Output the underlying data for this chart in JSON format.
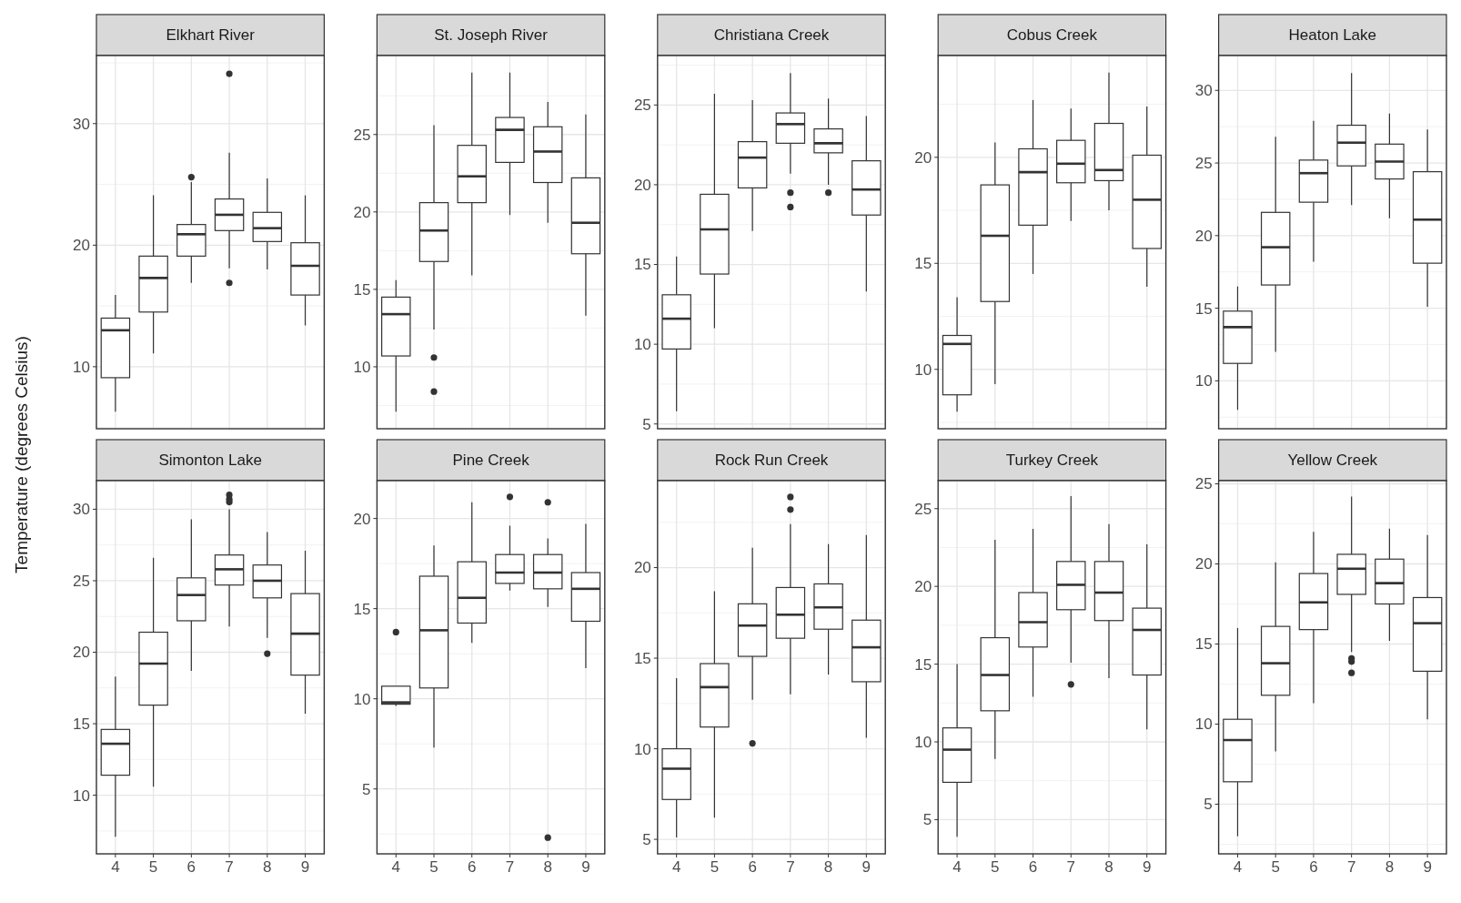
{
  "chart_data": [
    {
      "type": "box",
      "title": "Elkhart River",
      "ylabel": "Temperature (degrees Celsius)",
      "categories": [
        "4",
        "5",
        "6",
        "7",
        "8",
        "9"
      ],
      "ylim": [
        4.9,
        35.6
      ],
      "yticks": [
        10,
        20,
        30
      ],
      "grid": true,
      "tick_labels": "y",
      "boxes": [
        {
          "low": 6.3,
          "q1": 9.1,
          "median": 13.0,
          "q3": 14.0,
          "high": 15.9
        },
        {
          "low": 11.1,
          "q1": 14.5,
          "median": 17.3,
          "q3": 19.1,
          "high": 24.1
        },
        {
          "low": 16.9,
          "q1": 19.1,
          "median": 20.9,
          "q3": 21.7,
          "high": 25.2,
          "outliers": [
            25.6
          ]
        },
        {
          "low": 18.1,
          "q1": 21.2,
          "median": 22.5,
          "q3": 23.8,
          "high": 27.6,
          "outliers": [
            34.1,
            16.9
          ]
        },
        {
          "low": 18.0,
          "q1": 20.3,
          "median": 21.4,
          "q3": 22.7,
          "high": 25.5
        },
        {
          "low": 13.4,
          "q1": 15.9,
          "median": 18.3,
          "q3": 20.2,
          "high": 24.1
        }
      ]
    },
    {
      "type": "box",
      "title": "St. Joseph River",
      "categories": [
        "4",
        "5",
        "6",
        "7",
        "8",
        "9"
      ],
      "ylim": [
        6.0,
        30.1
      ],
      "yticks": [
        10,
        15,
        20,
        25
      ],
      "grid": true,
      "tick_labels": "y",
      "boxes": [
        {
          "low": 7.1,
          "q1": 10.7,
          "median": 13.4,
          "q3": 14.5,
          "high": 15.6
        },
        {
          "low": 12.4,
          "q1": 16.8,
          "median": 18.8,
          "q3": 20.6,
          "high": 25.6,
          "outliers": [
            10.6,
            8.4
          ]
        },
        {
          "low": 15.9,
          "q1": 20.6,
          "median": 22.3,
          "q3": 24.3,
          "high": 29.0
        },
        {
          "low": 19.8,
          "q1": 23.2,
          "median": 25.3,
          "q3": 26.1,
          "high": 29.0
        },
        {
          "low": 19.3,
          "q1": 21.9,
          "median": 23.9,
          "q3": 25.5,
          "high": 27.1
        },
        {
          "low": 13.3,
          "q1": 17.3,
          "median": 19.3,
          "q3": 22.2,
          "high": 26.3
        }
      ]
    },
    {
      "type": "box",
      "title": "Christiana Creek",
      "categories": [
        "4",
        "5",
        "6",
        "7",
        "8",
        "9"
      ],
      "ylim": [
        4.7,
        28.1
      ],
      "yticks": [
        5,
        10,
        15,
        20,
        25
      ],
      "grid": true,
      "tick_labels": "y",
      "boxes": [
        {
          "low": 5.8,
          "q1": 9.7,
          "median": 11.6,
          "q3": 13.1,
          "high": 15.5
        },
        {
          "low": 11.0,
          "q1": 14.4,
          "median": 17.2,
          "q3": 19.4,
          "high": 25.7
        },
        {
          "low": 17.1,
          "q1": 19.8,
          "median": 21.7,
          "q3": 22.7,
          "high": 25.3
        },
        {
          "low": 20.7,
          "q1": 22.6,
          "median": 23.8,
          "q3": 24.5,
          "high": 27.0,
          "outliers": [
            19.5,
            18.6
          ]
        },
        {
          "low": 20.0,
          "q1": 22.0,
          "median": 22.6,
          "q3": 23.5,
          "high": 25.4,
          "outliers": [
            19.5
          ]
        },
        {
          "low": 13.3,
          "q1": 18.1,
          "median": 19.7,
          "q3": 21.5,
          "high": 24.3
        }
      ]
    },
    {
      "type": "box",
      "title": "Cobus Creek",
      "categories": [
        "4",
        "5",
        "6",
        "7",
        "8",
        "9"
      ],
      "ylim": [
        7.2,
        24.8
      ],
      "yticks": [
        10,
        15,
        20
      ],
      "grid": true,
      "tick_labels": "y",
      "boxes": [
        {
          "low": 8.0,
          "q1": 8.8,
          "median": 11.2,
          "q3": 11.6,
          "high": 13.4
        },
        {
          "low": 9.3,
          "q1": 13.2,
          "median": 16.3,
          "q3": 18.7,
          "high": 20.7
        },
        {
          "low": 14.5,
          "q1": 16.8,
          "median": 19.3,
          "q3": 20.4,
          "high": 22.7
        },
        {
          "low": 17.0,
          "q1": 18.8,
          "median": 19.7,
          "q3": 20.8,
          "high": 22.3
        },
        {
          "low": 17.5,
          "q1": 18.9,
          "median": 19.4,
          "q3": 21.6,
          "high": 24.0
        },
        {
          "low": 13.9,
          "q1": 15.7,
          "median": 18.0,
          "q3": 20.1,
          "high": 22.4
        }
      ]
    },
    {
      "type": "box",
      "title": "Heaton Lake",
      "categories": [
        "4",
        "5",
        "6",
        "7",
        "8",
        "9"
      ],
      "ylim": [
        6.7,
        32.4
      ],
      "yticks": [
        10,
        15,
        20,
        25,
        30
      ],
      "grid": true,
      "tick_labels": "y",
      "boxes": [
        {
          "low": 8.0,
          "q1": 11.2,
          "median": 13.7,
          "q3": 14.8,
          "high": 16.5
        },
        {
          "low": 12.0,
          "q1": 16.6,
          "median": 19.2,
          "q3": 21.6,
          "high": 26.8
        },
        {
          "low": 18.2,
          "q1": 22.3,
          "median": 24.3,
          "q3": 25.2,
          "high": 27.9
        },
        {
          "low": 22.1,
          "q1": 24.8,
          "median": 26.4,
          "q3": 27.6,
          "high": 31.2
        },
        {
          "low": 21.2,
          "q1": 23.9,
          "median": 25.1,
          "q3": 26.3,
          "high": 28.4
        },
        {
          "low": 15.1,
          "q1": 18.1,
          "median": 21.1,
          "q3": 24.4,
          "high": 27.3
        }
      ]
    },
    {
      "type": "box",
      "title": "Simonton Lake",
      "categories": [
        "4",
        "5",
        "6",
        "7",
        "8",
        "9"
      ],
      "ylim": [
        5.9,
        32.0
      ],
      "yticks": [
        10,
        15,
        20,
        25,
        30
      ],
      "grid": true,
      "boxes": [
        {
          "low": 7.1,
          "q1": 11.4,
          "median": 13.6,
          "q3": 14.6,
          "high": 18.3
        },
        {
          "low": 10.6,
          "q1": 16.3,
          "median": 19.2,
          "q3": 21.4,
          "high": 26.6
        },
        {
          "low": 18.7,
          "q1": 22.2,
          "median": 24.0,
          "q3": 25.2,
          "high": 29.3
        },
        {
          "low": 21.8,
          "q1": 24.7,
          "median": 25.8,
          "q3": 26.8,
          "high": 30.0,
          "outliers": [
            31.0,
            30.7,
            30.5
          ]
        },
        {
          "low": 21.0,
          "q1": 23.8,
          "median": 25.0,
          "q3": 26.1,
          "high": 28.4,
          "outliers": [
            19.9
          ]
        },
        {
          "low": 15.7,
          "q1": 18.4,
          "median": 21.3,
          "q3": 24.1,
          "high": 27.1
        }
      ]
    },
    {
      "type": "box",
      "title": "Pine Creek",
      "categories": [
        "4",
        "5",
        "6",
        "7",
        "8",
        "9"
      ],
      "ylim": [
        1.4,
        22.1
      ],
      "yticks": [
        5,
        10,
        15,
        20
      ],
      "grid": true,
      "boxes": [
        {
          "low": 9.6,
          "q1": 9.7,
          "median": 9.8,
          "q3": 10.7,
          "high": 10.7,
          "outliers": [
            13.7
          ]
        },
        {
          "low": 7.3,
          "q1": 10.6,
          "median": 13.8,
          "q3": 16.8,
          "high": 18.5
        },
        {
          "low": 13.1,
          "q1": 14.2,
          "median": 15.6,
          "q3": 17.6,
          "high": 20.9
        },
        {
          "low": 16.0,
          "q1": 16.4,
          "median": 17.0,
          "q3": 18.0,
          "high": 19.6,
          "outliers": [
            21.2
          ]
        },
        {
          "low": 15.1,
          "q1": 16.1,
          "median": 17.0,
          "q3": 18.0,
          "high": 18.9,
          "outliers": [
            20.9,
            2.3
          ]
        },
        {
          "low": 11.7,
          "q1": 14.3,
          "median": 16.1,
          "q3": 17.0,
          "high": 19.7
        }
      ]
    },
    {
      "type": "box",
      "title": "Rock Run Creek",
      "categories": [
        "4",
        "5",
        "6",
        "7",
        "8",
        "9"
      ],
      "ylim": [
        4.2,
        24.8
      ],
      "yticks": [
        5,
        10,
        15,
        20
      ],
      "grid": true,
      "boxes": [
        {
          "low": 5.1,
          "q1": 7.2,
          "median": 8.9,
          "q3": 10.0,
          "high": 13.9
        },
        {
          "low": 6.2,
          "q1": 11.2,
          "median": 13.4,
          "q3": 14.7,
          "high": 18.7
        },
        {
          "low": 12.7,
          "q1": 15.1,
          "median": 16.8,
          "q3": 18.0,
          "high": 21.1,
          "outliers": [
            10.3
          ]
        },
        {
          "low": 13.0,
          "q1": 16.1,
          "median": 17.4,
          "q3": 18.9,
          "high": 22.4,
          "outliers": [
            23.9,
            23.2
          ]
        },
        {
          "low": 14.1,
          "q1": 16.6,
          "median": 17.8,
          "q3": 19.1,
          "high": 21.3
        },
        {
          "low": 10.6,
          "q1": 13.7,
          "median": 15.6,
          "q3": 17.1,
          "high": 21.8
        }
      ]
    },
    {
      "type": "box",
      "title": "Turkey Creek",
      "categories": [
        "4",
        "5",
        "6",
        "7",
        "8",
        "9"
      ],
      "ylim": [
        2.8,
        26.8
      ],
      "yticks": [
        5,
        10,
        15,
        20,
        25
      ],
      "grid": true,
      "boxes": [
        {
          "low": 3.9,
          "q1": 7.4,
          "median": 9.5,
          "q3": 10.9,
          "high": 15.0
        },
        {
          "low": 8.9,
          "q1": 12.0,
          "median": 14.3,
          "q3": 16.7,
          "high": 23.0
        },
        {
          "low": 12.9,
          "q1": 16.1,
          "median": 17.7,
          "q3": 19.6,
          "high": 23.7
        },
        {
          "low": 15.1,
          "q1": 18.5,
          "median": 20.1,
          "q3": 21.6,
          "high": 25.8,
          "outliers": [
            13.7
          ]
        },
        {
          "low": 14.1,
          "q1": 17.8,
          "median": 19.6,
          "q3": 21.6,
          "high": 24.0
        },
        {
          "low": 10.8,
          "q1": 14.3,
          "median": 17.2,
          "q3": 18.6,
          "high": 22.7
        }
      ]
    },
    {
      "type": "box",
      "title": "Yellow Creek",
      "categories": [
        "4",
        "5",
        "6",
        "7",
        "8",
        "9"
      ],
      "ylim": [
        1.9,
        25.2
      ],
      "yticks": [
        5,
        10,
        15,
        20,
        25
      ],
      "grid": true,
      "boxes": [
        {
          "low": 3.0,
          "q1": 6.4,
          "median": 9.0,
          "q3": 10.3,
          "high": 16.0
        },
        {
          "low": 8.3,
          "q1": 11.8,
          "median": 13.8,
          "q3": 16.1,
          "high": 20.1
        },
        {
          "low": 11.3,
          "q1": 15.9,
          "median": 17.6,
          "q3": 19.4,
          "high": 22.0
        },
        {
          "low": 14.5,
          "q1": 18.1,
          "median": 19.7,
          "q3": 20.6,
          "high": 24.2,
          "outliers": [
            14.1,
            13.9,
            13.2
          ]
        },
        {
          "low": 15.2,
          "q1": 17.5,
          "median": 18.8,
          "q3": 20.3,
          "high": 22.2
        },
        {
          "low": 10.3,
          "q1": 13.3,
          "median": 16.3,
          "q3": 17.9,
          "high": 21.8
        }
      ]
    }
  ]
}
